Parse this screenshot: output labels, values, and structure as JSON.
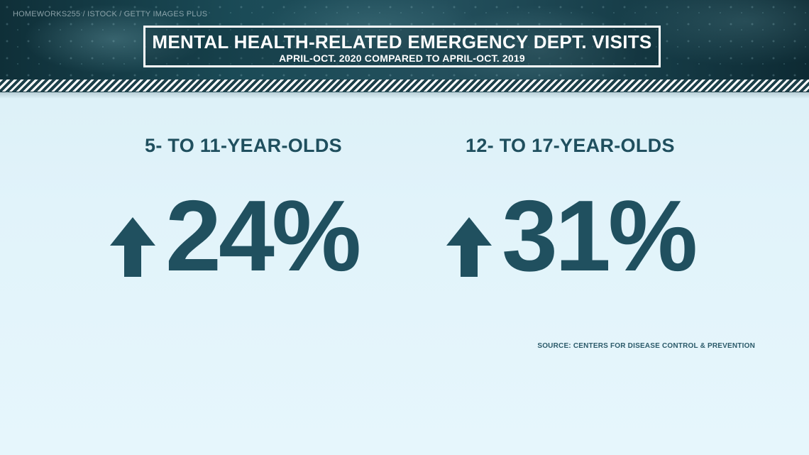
{
  "header": {
    "credit": "HOMEWORKS255 / ISTOCK / GETTY IMAGES PLUS",
    "title": "MENTAL HEALTH-RELATED EMERGENCY DEPT. VISITS",
    "subtitle": "APRIL-OCT. 2020 COMPARED TO APRIL-OCT. 2019"
  },
  "stats": [
    {
      "label": "5- TO 11-YEAR-OLDS",
      "direction_icon": "arrow-up-icon",
      "value": "24%"
    },
    {
      "label": "12- TO 17-YEAR-OLDS",
      "direction_icon": "arrow-up-icon",
      "value": "31%"
    }
  ],
  "source": "SOURCE: CENTERS FOR DISEASE CONTROL & PREVENTION",
  "colors": {
    "accent": "#20505f",
    "background": "#e1f3fa",
    "header": "#1b4b57"
  }
}
